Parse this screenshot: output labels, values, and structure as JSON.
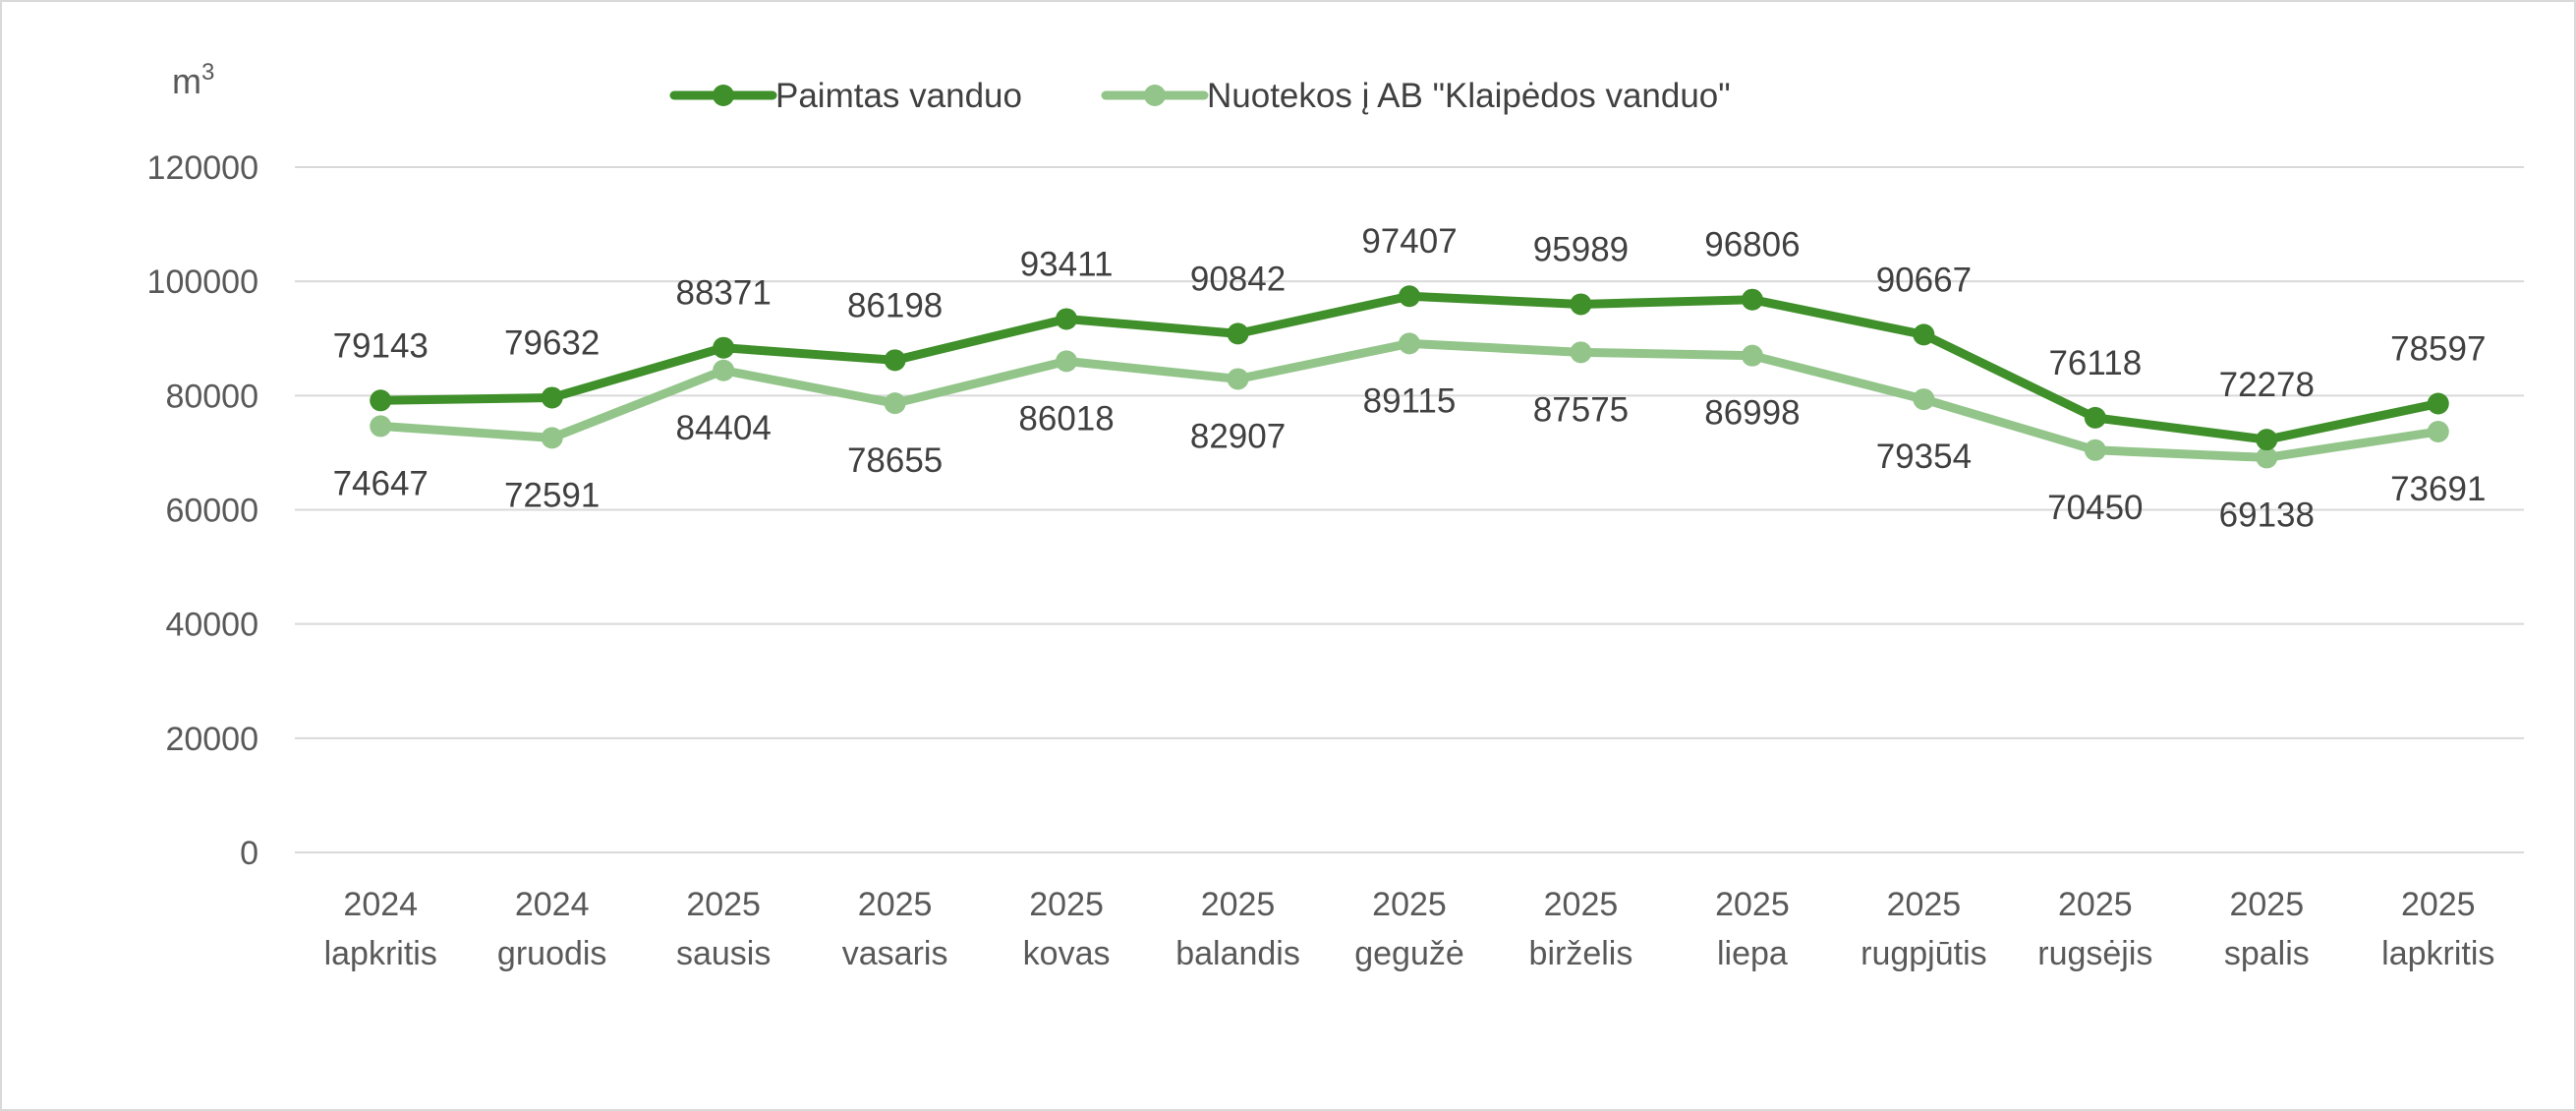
{
  "chart_data": {
    "type": "line",
    "unit_label": "m",
    "unit_superscript": "3",
    "ylim": [
      0,
      120000
    ],
    "yticks": [
      "0",
      "20000",
      "40000",
      "60000",
      "80000",
      "100000",
      "120000"
    ],
    "grid": true,
    "legend_position": "top",
    "categories": [
      [
        "2024",
        "lapkritis"
      ],
      [
        "2024",
        "gruodis"
      ],
      [
        "2025",
        "sausis"
      ],
      [
        "2025",
        "vasaris"
      ],
      [
        "2025",
        "kovas"
      ],
      [
        "2025",
        "balandis"
      ],
      [
        "2025",
        "gegužė"
      ],
      [
        "2025",
        "birželis"
      ],
      [
        "2025",
        "liepa"
      ],
      [
        "2025",
        "rugpjūtis"
      ],
      [
        "2025",
        "rugsėjis"
      ],
      [
        "2025",
        "spalis"
      ],
      [
        "2025",
        "lapkritis"
      ]
    ],
    "series": [
      {
        "name": "Paimtas vanduo",
        "color": "#3f8f2a",
        "label_position": "above",
        "values": [
          79143,
          79632,
          88371,
          86198,
          93411,
          90842,
          97407,
          95989,
          96806,
          90667,
          76118,
          72278,
          78597
        ]
      },
      {
        "name": "Nuotekos į AB \"Klaipėdos vanduo\"",
        "color": "#93c58a",
        "label_position": "below",
        "values": [
          74647,
          72591,
          84404,
          78655,
          86018,
          82907,
          89115,
          87575,
          86998,
          79354,
          70450,
          69138,
          73691
        ]
      }
    ]
  }
}
